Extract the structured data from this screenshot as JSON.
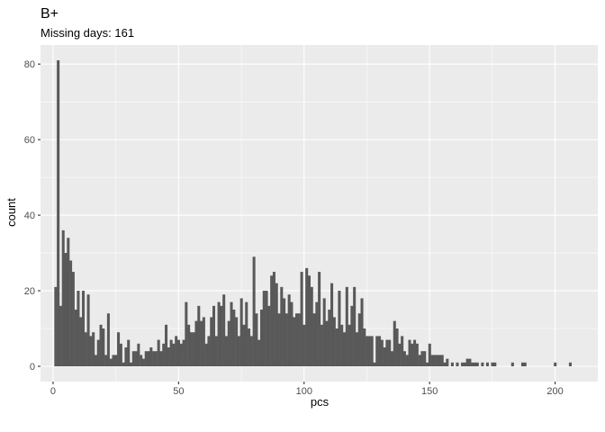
{
  "chart_data": {
    "type": "bar",
    "title": "B+",
    "subtitle": "Missing days: 161",
    "xlabel": "pcs",
    "ylabel": "count",
    "xlim": [
      -5,
      217
    ],
    "ylim": [
      -4.05,
      85.05
    ],
    "x_ticks": [
      0,
      50,
      100,
      150,
      200
    ],
    "y_ticks": [
      0,
      20,
      40,
      60,
      80
    ],
    "x_tick_labels": [
      "0",
      "50",
      "100",
      "150",
      "200"
    ],
    "y_tick_labels": [
      "0",
      "20",
      "40",
      "60",
      "80"
    ],
    "grid": true,
    "legend": "none",
    "bar_color": "#595959",
    "panel_color": "#ebebeb",
    "grid_color": "#ffffff",
    "bin_width": 1,
    "x": [
      1,
      2,
      3,
      4,
      5,
      6,
      7,
      8,
      9,
      10,
      11,
      12,
      13,
      14,
      15,
      16,
      17,
      18,
      19,
      20,
      21,
      22,
      23,
      24,
      25,
      26,
      27,
      28,
      29,
      30,
      31,
      32,
      33,
      34,
      35,
      36,
      37,
      38,
      39,
      40,
      41,
      42,
      43,
      44,
      45,
      46,
      47,
      48,
      49,
      50,
      51,
      52,
      53,
      54,
      55,
      56,
      57,
      58,
      59,
      60,
      61,
      62,
      63,
      64,
      65,
      66,
      67,
      68,
      69,
      70,
      71,
      72,
      73,
      74,
      75,
      76,
      77,
      78,
      79,
      80,
      81,
      82,
      83,
      84,
      85,
      86,
      87,
      88,
      89,
      90,
      91,
      92,
      93,
      94,
      95,
      96,
      97,
      98,
      99,
      100,
      101,
      102,
      103,
      104,
      105,
      106,
      107,
      108,
      109,
      110,
      111,
      112,
      113,
      114,
      115,
      116,
      117,
      118,
      119,
      120,
      121,
      122,
      123,
      124,
      125,
      126,
      127,
      128,
      129,
      130,
      131,
      132,
      133,
      134,
      135,
      136,
      137,
      138,
      139,
      140,
      141,
      142,
      143,
      144,
      145,
      146,
      147,
      148,
      149,
      150,
      151,
      152,
      153,
      154,
      155,
      156,
      157,
      158,
      159,
      160,
      161,
      162,
      163,
      164,
      165,
      166,
      167,
      168,
      169,
      170,
      171,
      172,
      173,
      174,
      175,
      176,
      177,
      178,
      179,
      180,
      181,
      182,
      183,
      184,
      185,
      186,
      187,
      188,
      189,
      190,
      191,
      192,
      193,
      194,
      195,
      196,
      197,
      198,
      199,
      200,
      201,
      202,
      203,
      204,
      205,
      206
    ],
    "values": [
      21,
      81,
      16,
      36,
      30,
      34,
      28,
      25,
      15,
      20,
      13,
      20,
      9,
      19,
      8,
      9,
      3,
      7,
      11,
      10,
      3,
      14,
      2,
      3,
      3,
      9,
      6,
      1,
      5,
      7,
      1,
      4,
      4,
      6,
      3,
      2,
      4,
      4,
      5,
      4,
      4,
      7,
      4,
      6,
      11,
      5,
      7,
      6,
      8,
      7,
      6,
      7,
      17,
      11,
      9,
      9,
      12,
      16,
      12,
      13,
      6,
      8,
      13,
      16,
      8,
      17,
      16,
      19,
      8,
      12,
      17,
      15,
      13,
      8,
      18,
      11,
      17,
      10,
      8,
      29,
      14,
      7,
      15,
      20,
      20,
      16,
      24,
      25,
      22,
      14,
      21,
      18,
      14,
      19,
      17,
      13,
      14,
      14,
      25,
      11,
      26,
      24,
      21,
      14,
      17,
      25,
      11,
      18,
      12,
      15,
      22,
      13,
      10,
      20,
      11,
      9,
      21,
      11,
      16,
      21,
      9,
      14,
      18,
      10,
      8,
      8,
      8,
      1,
      8,
      8,
      7,
      5,
      7,
      7,
      4,
      12,
      10,
      6,
      8,
      4,
      3,
      7,
      6,
      7,
      6,
      3,
      4,
      4,
      1,
      6,
      3,
      3,
      3,
      3,
      3,
      1,
      2,
      0,
      1,
      0,
      1,
      0,
      1,
      1,
      2,
      2,
      1,
      1,
      1,
      0,
      1,
      0,
      1,
      0,
      1,
      1,
      0,
      0,
      0,
      0,
      0,
      0,
      1,
      0,
      0,
      0,
      1,
      1,
      0,
      0,
      0,
      0,
      0,
      0,
      0,
      0,
      0,
      0,
      0,
      1,
      0,
      0,
      0,
      0,
      0,
      1
    ]
  }
}
